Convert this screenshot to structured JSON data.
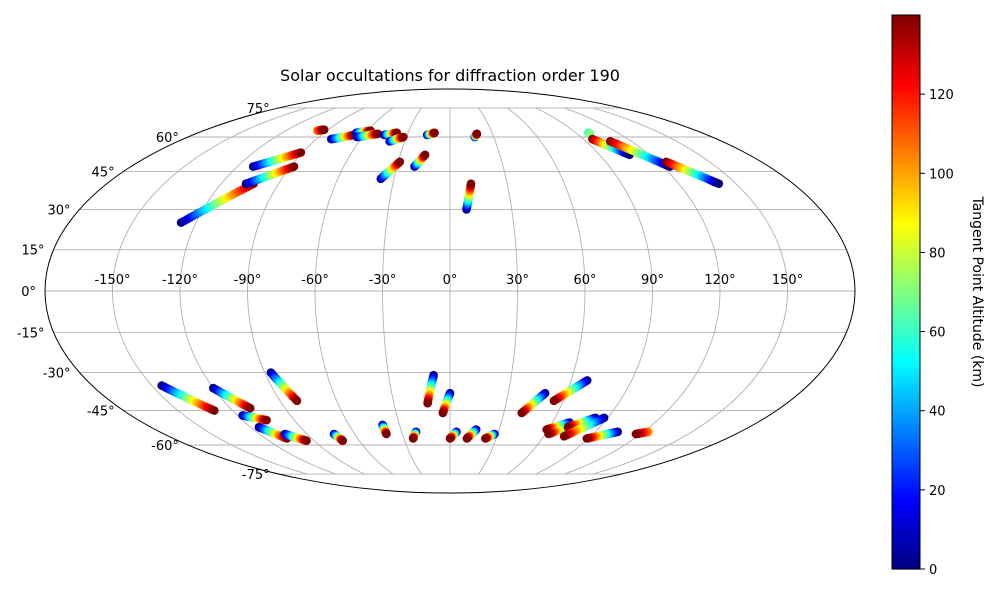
{
  "chart_data": {
    "type": "scatter",
    "projection": "Mollweide",
    "title": "Solar occultations for diffraction order 190",
    "grid": true,
    "x_tick_labels": [
      "-150°",
      "-120°",
      "-90°",
      "-60°",
      "-30°",
      "0°",
      "30°",
      "60°",
      "90°",
      "120°",
      "150°"
    ],
    "y_tick_labels": [
      "-75°",
      "-60°",
      "-45°",
      "-30°",
      "-15°",
      "0°",
      "15°",
      "30°",
      "45°",
      "60°",
      "75°"
    ],
    "colorbar": {
      "label": "Tangent Point Altitude (km)",
      "colormap": "jet",
      "range": [
        0,
        140
      ],
      "tick_labels": [
        "0",
        "20",
        "40",
        "60",
        "80",
        "100",
        "120"
      ]
    },
    "units": {
      "lon": "degrees",
      "lat": "degrees",
      "altitude": "km"
    },
    "tracks": [
      {
        "start": [
          -127,
          25
        ],
        "end": [
          -103,
          40
        ],
        "alt": [
          0,
          140
        ]
      },
      {
        "start": [
          -107,
          40
        ],
        "end": [
          -88,
          47
        ],
        "alt": [
          0,
          140
        ]
      },
      {
        "start": [
          -111,
          47
        ],
        "end": [
          -91,
          53
        ],
        "alt": [
          0,
          140
        ]
      },
      {
        "start": [
          -97,
          63
        ],
        "end": [
          -93,
          63.5
        ],
        "alt": [
          100,
          140
        ]
      },
      {
        "start": [
          -80,
          59
        ],
        "end": [
          -67,
          61
        ],
        "alt": [
          0,
          140
        ]
      },
      {
        "start": [
          -67,
          62
        ],
        "end": [
          -58,
          63
        ],
        "alt": [
          0,
          140
        ]
      },
      {
        "start": [
          -64,
          60
        ],
        "end": [
          -51,
          61.5
        ],
        "alt": [
          0,
          140
        ]
      },
      {
        "start": [
          -46,
          61
        ],
        "end": [
          -38,
          62
        ],
        "alt": [
          0,
          140
        ]
      },
      {
        "start": [
          -40,
          58
        ],
        "end": [
          -32,
          60
        ],
        "alt": [
          0,
          140
        ]
      },
      {
        "start": [
          -37,
          42
        ],
        "end": [
          -29,
          49
        ],
        "alt": [
          0,
          140
        ]
      },
      {
        "start": [
          -20,
          47
        ],
        "end": [
          -15,
          52
        ],
        "alt": [
          0,
          140
        ]
      },
      {
        "start": [
          -16,
          61
        ],
        "end": [
          -11,
          62
        ],
        "alt": [
          0,
          140
        ]
      },
      {
        "start": [
          8,
          30
        ],
        "end": [
          11,
          40
        ],
        "alt": [
          0,
          140
        ]
      },
      {
        "start": [
          17,
          60
        ],
        "end": [
          19,
          61.5
        ],
        "alt": [
          0,
          140
        ]
      },
      {
        "start": [
          99,
          62
        ],
        "end": [
          99,
          61.5
        ],
        "alt": [
          50,
          70
        ]
      },
      {
        "start": [
          96,
          59
        ],
        "end": [
          108,
          52
        ],
        "alt": [
          140,
          0
        ]
      },
      {
        "start": [
          106,
          58
        ],
        "end": [
          124,
          47
        ],
        "alt": [
          140,
          0
        ]
      },
      {
        "start": [
          125,
          49
        ],
        "end": [
          141,
          40
        ],
        "alt": [
          140,
          0
        ]
      },
      {
        "start": [
          -145,
          -35
        ],
        "end": [
          -130,
          -45
        ],
        "alt": [
          0,
          140
        ]
      },
      {
        "start": [
          -120,
          -36
        ],
        "end": [
          -109,
          -44
        ],
        "alt": [
          0,
          140
        ]
      },
      {
        "start": [
          -117,
          -47
        ],
        "end": [
          -106,
          -49
        ],
        "alt": [
          0,
          140
        ]
      },
      {
        "start": [
          -115,
          -52
        ],
        "end": [
          -106,
          -57
        ],
        "alt": [
          0,
          140
        ]
      },
      {
        "start": [
          -104,
          -55
        ],
        "end": [
          -95,
          -58
        ],
        "alt": [
          0,
          140
        ]
      },
      {
        "start": [
          -87,
          -30
        ],
        "end": [
          -81,
          -41
        ],
        "alt": [
          0,
          140
        ]
      },
      {
        "start": [
          -73,
          -55
        ],
        "end": [
          -71,
          -58
        ],
        "alt": [
          0,
          140
        ]
      },
      {
        "start": [
          -40,
          -51
        ],
        "end": [
          -40,
          -55
        ],
        "alt": [
          0,
          140
        ]
      },
      {
        "start": [
          -21,
          -54
        ],
        "end": [
          -24,
          -57
        ],
        "alt": [
          0,
          140
        ]
      },
      {
        "start": [
          -8,
          -31
        ],
        "end": [
          -12,
          -42
        ],
        "alt": [
          0,
          140
        ]
      },
      {
        "start": [
          0,
          -38
        ],
        "end": [
          -4,
          -46
        ],
        "alt": [
          0,
          140
        ]
      },
      {
        "start": [
          4,
          -54
        ],
        "end": [
          0,
          -57
        ],
        "alt": [
          0,
          140
        ]
      },
      {
        "start": [
          16,
          -53
        ],
        "end": [
          11,
          -57
        ],
        "alt": [
          0,
          140
        ]
      },
      {
        "start": [
          28,
          -55
        ],
        "end": [
          23,
          -57
        ],
        "alt": [
          0,
          140
        ]
      },
      {
        "start": [
          49,
          -38
        ],
        "end": [
          40,
          -46
        ],
        "alt": [
          0,
          140
        ]
      },
      {
        "start": [
          68,
          -33
        ],
        "end": [
          55,
          -41
        ],
        "alt": [
          0,
          140
        ]
      },
      {
        "start": [
          70,
          -50
        ],
        "end": [
          59,
          -53
        ],
        "alt": [
          0,
          140
        ]
      },
      {
        "start": [
          73,
          -51
        ],
        "end": [
          62,
          -55
        ],
        "alt": [
          0,
          140
        ]
      },
      {
        "start": [
          83,
          -48
        ],
        "end": [
          71,
          -52
        ],
        "alt": [
          0,
          140
        ]
      },
      {
        "start": [
          88,
          -48
        ],
        "end": [
          73,
          -56
        ],
        "alt": [
          0,
          140
        ]
      },
      {
        "start": [
          104,
          -54
        ],
        "end": [
          89,
          -57
        ],
        "alt": [
          0,
          140
        ]
      },
      {
        "start": [
          123,
          -54
        ],
        "end": [
          117,
          -55
        ],
        "alt": [
          100,
          140
        ]
      }
    ]
  }
}
